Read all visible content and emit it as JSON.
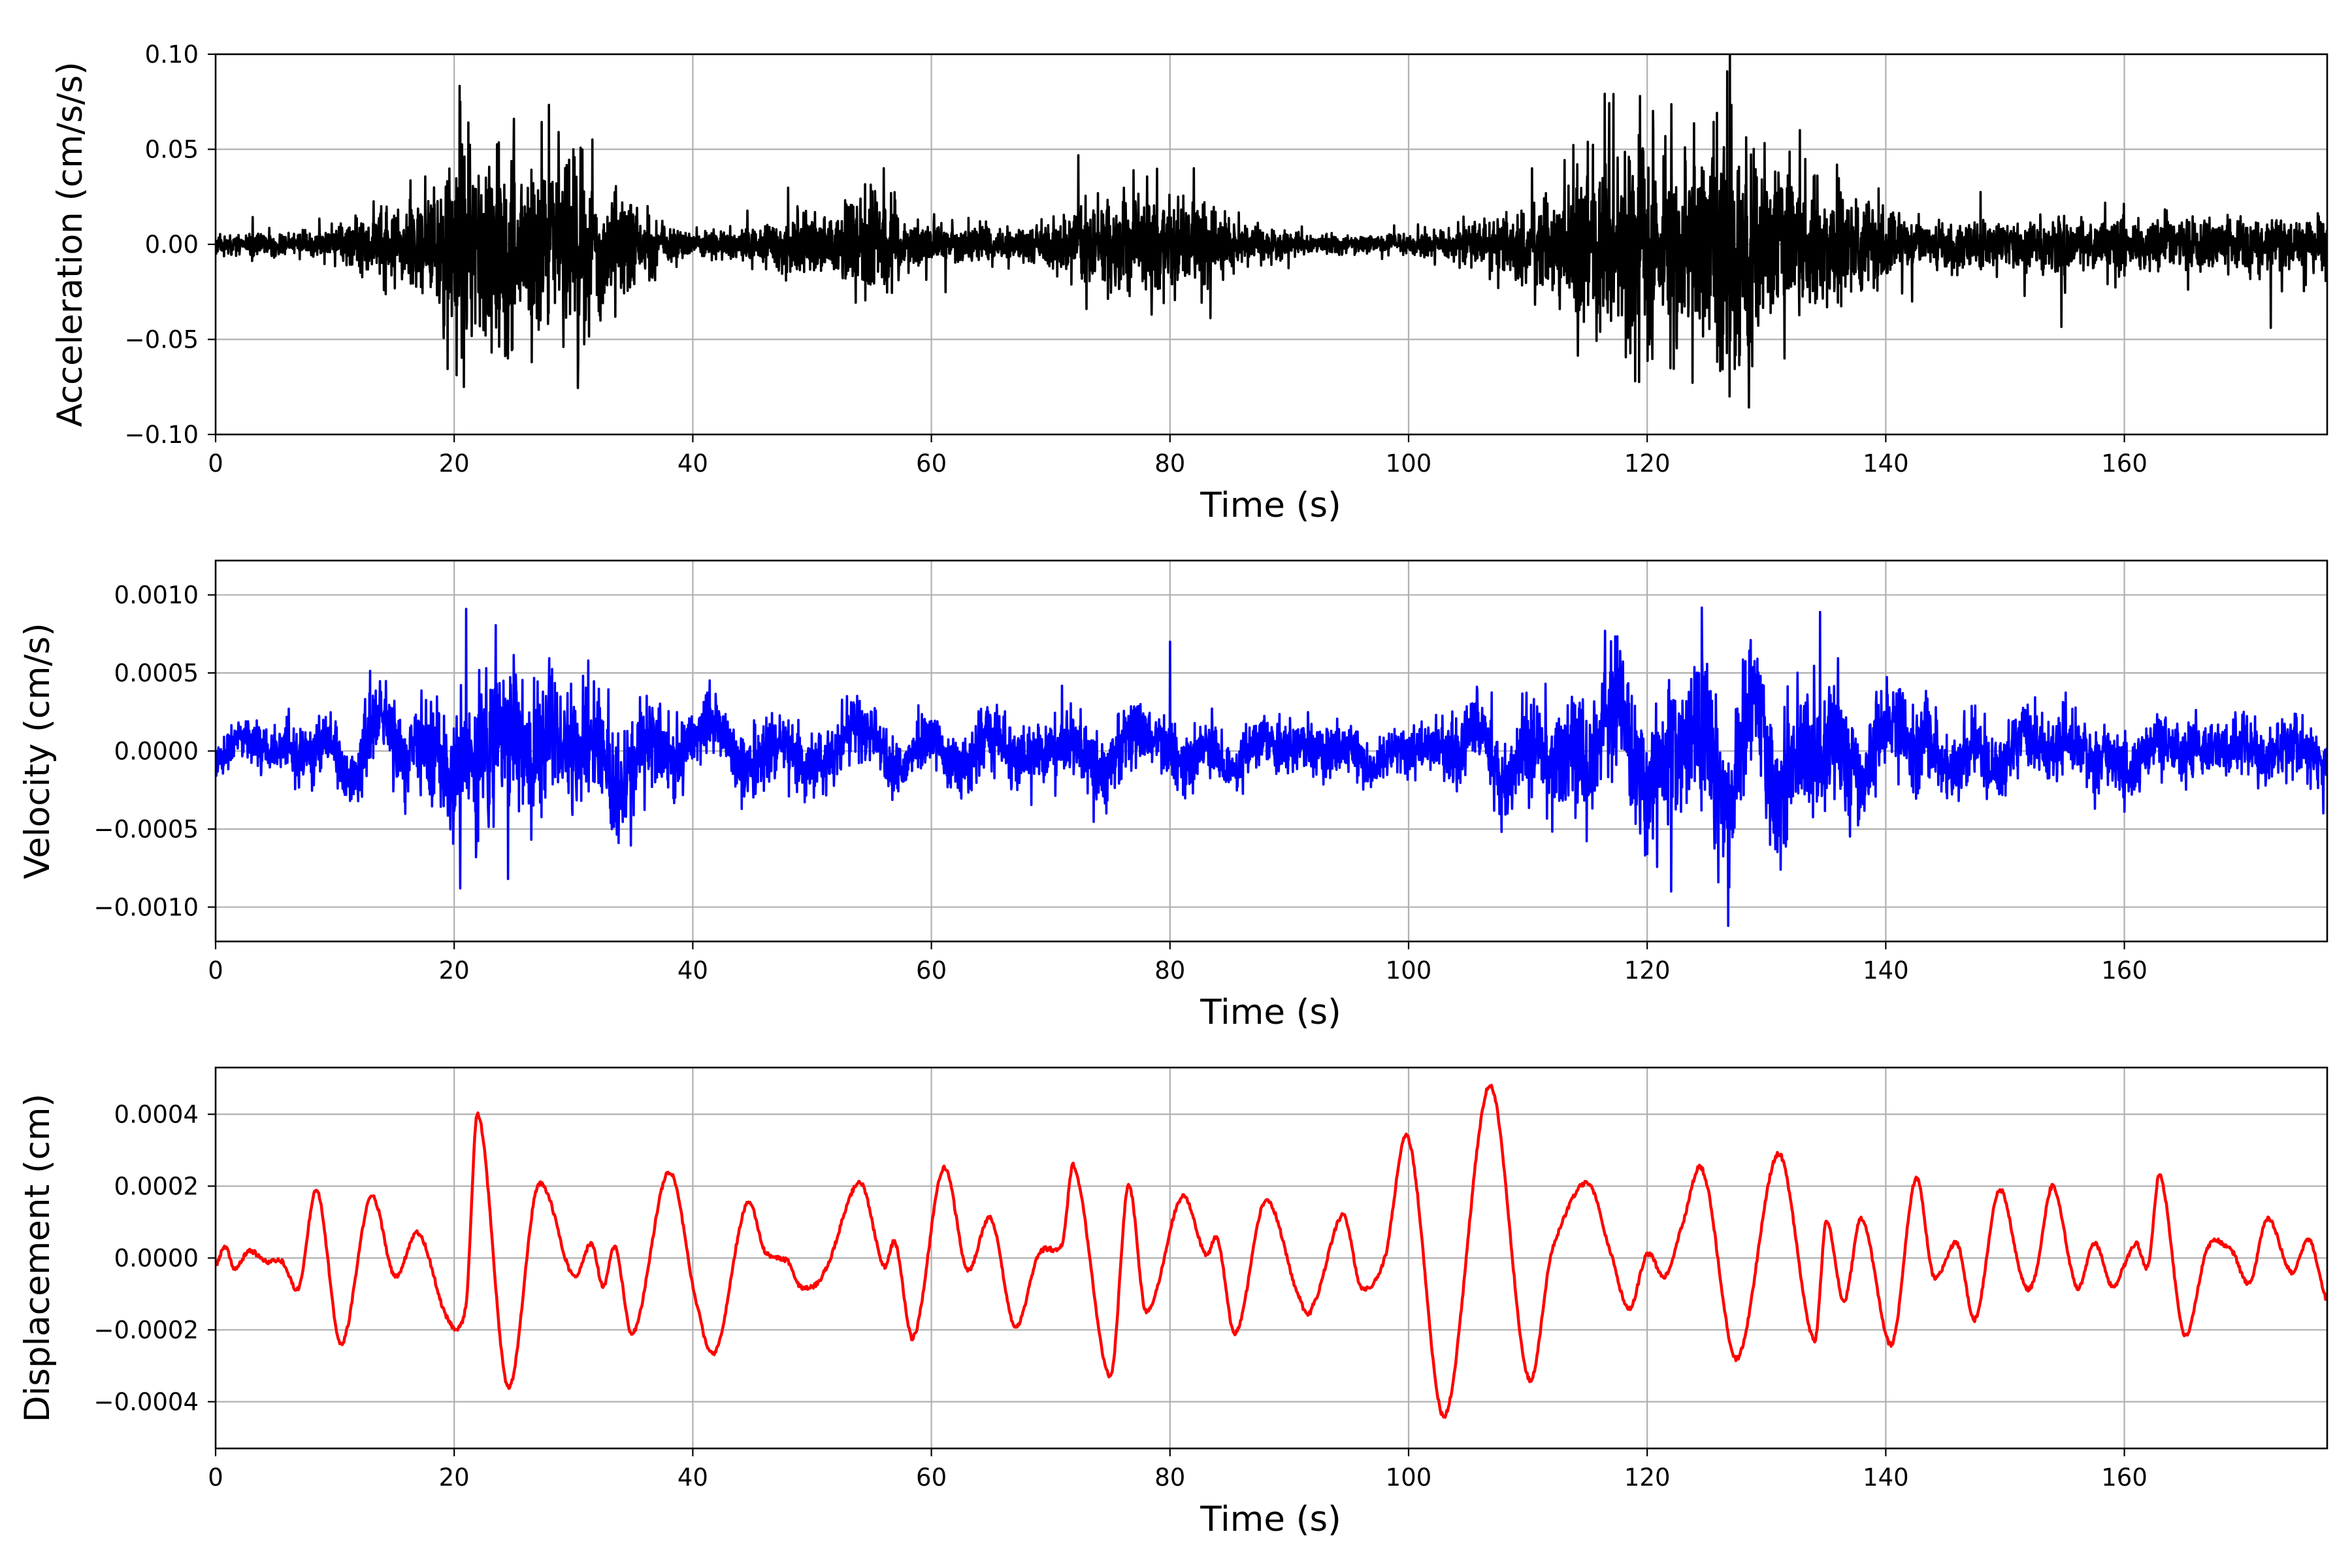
{
  "chart_data": [
    {
      "type": "line",
      "xlabel": "Time (s)",
      "ylabel": "Acceleration (cm/s/s)",
      "xlim": [
        0,
        177
      ],
      "ylim": [
        -0.1,
        0.1
      ],
      "xticks": [
        0,
        20,
        40,
        60,
        80,
        100,
        120,
        140,
        160
      ],
      "xtick_labels": [
        "0",
        "20",
        "40",
        "60",
        "80",
        "100",
        "120",
        "140",
        "160"
      ],
      "yticks": [
        -0.1,
        -0.05,
        0.0,
        0.05,
        0.1
      ],
      "ytick_labels": [
        "−0.10",
        "−0.05",
        "0.00",
        "0.05",
        "0.10"
      ],
      "grid": true,
      "color": "#000000",
      "signal": "noisy",
      "seed": 11,
      "envelope": [
        [
          0,
          0.004
        ],
        [
          10,
          0.006
        ],
        [
          13,
          0.016
        ],
        [
          16,
          0.018
        ],
        [
          19,
          0.03
        ],
        [
          20.5,
          0.06
        ],
        [
          22,
          0.034
        ],
        [
          24,
          0.046
        ],
        [
          26,
          0.036
        ],
        [
          29,
          0.042
        ],
        [
          33,
          0.032
        ],
        [
          36,
          0.012
        ],
        [
          40,
          0.006
        ],
        [
          44,
          0.006
        ],
        [
          48,
          0.014
        ],
        [
          52,
          0.016
        ],
        [
          55,
          0.024
        ],
        [
          58,
          0.012
        ],
        [
          62,
          0.008
        ],
        [
          68,
          0.008
        ],
        [
          73,
          0.018
        ],
        [
          76,
          0.02
        ],
        [
          80,
          0.022
        ],
        [
          83,
          0.018
        ],
        [
          86,
          0.009
        ],
        [
          92,
          0.004
        ],
        [
          100,
          0.004
        ],
        [
          105,
          0.008
        ],
        [
          110,
          0.018
        ],
        [
          115,
          0.034
        ],
        [
          119,
          0.05
        ],
        [
          123,
          0.04
        ],
        [
          126.7,
          0.065
        ],
        [
          130,
          0.036
        ],
        [
          135,
          0.03
        ],
        [
          139,
          0.02
        ],
        [
          142,
          0.011
        ],
        [
          150,
          0.011
        ],
        [
          160,
          0.012
        ],
        [
          170,
          0.012
        ],
        [
          177,
          0.013
        ]
      ],
      "spikes": [
        [
          20.5,
          0.075
        ],
        [
          20.8,
          -0.075
        ],
        [
          25.0,
          0.066
        ],
        [
          24.5,
          -0.06
        ],
        [
          26.5,
          -0.062
        ],
        [
          30.0,
          0.05
        ],
        [
          30.4,
          -0.06
        ],
        [
          56.0,
          0.04
        ],
        [
          73.0,
          -0.034
        ],
        [
          82.0,
          0.04
        ],
        [
          119.0,
          -0.072
        ],
        [
          120.5,
          0.06
        ],
        [
          126.7,
          0.091
        ],
        [
          126.9,
          -0.08
        ],
        [
          131.5,
          -0.06
        ]
      ]
    },
    {
      "type": "line",
      "xlabel": "Time (s)",
      "ylabel": "Velocity (cm/s)",
      "xlim": [
        0,
        177
      ],
      "ylim": [
        -0.00122,
        0.00122
      ],
      "xticks": [
        0,
        20,
        40,
        60,
        80,
        100,
        120,
        140,
        160
      ],
      "xtick_labels": [
        "0",
        "20",
        "40",
        "60",
        "80",
        "100",
        "120",
        "140",
        "160"
      ],
      "yticks": [
        -0.001,
        -0.0005,
        0.0,
        0.0005,
        0.001
      ],
      "ytick_labels": [
        "−0.0010",
        "−0.0005",
        "0.0000",
        "0.0005",
        "0.0010"
      ],
      "grid": true,
      "color": "#0000ff",
      "signal": "velocity",
      "seed": 23,
      "envelope": [
        [
          0,
          8e-05
        ],
        [
          8,
          0.00012
        ],
        [
          15,
          0.00016
        ],
        [
          20,
          0.00024
        ],
        [
          22,
          0.0003
        ],
        [
          26,
          0.00026
        ],
        [
          34,
          0.00022
        ],
        [
          40,
          0.00014
        ],
        [
          50,
          0.00014
        ],
        [
          60,
          0.00013
        ],
        [
          75,
          0.00014
        ],
        [
          85,
          0.00012
        ],
        [
          100,
          0.0001
        ],
        [
          108,
          0.00016
        ],
        [
          115,
          0.00026
        ],
        [
          122,
          0.0003
        ],
        [
          127,
          0.00032
        ],
        [
          135,
          0.00026
        ],
        [
          140,
          0.00018
        ],
        [
          150,
          0.00013
        ],
        [
          177,
          0.00012
        ]
      ],
      "spikes": [
        [
          21.0,
          0.00091
        ],
        [
          20.5,
          -0.00088
        ],
        [
          24.5,
          -0.00082
        ],
        [
          126.8,
          -0.00112
        ],
        [
          134.5,
          0.00089
        ],
        [
          122.0,
          -0.0009
        ],
        [
          80.0,
          0.0007
        ]
      ]
    },
    {
      "type": "line",
      "xlabel": "Time (s)",
      "ylabel": "Displacement (cm)",
      "xlim": [
        0,
        177
      ],
      "ylim": [
        -0.00053,
        0.00053
      ],
      "xticks": [
        0,
        20,
        40,
        60,
        80,
        100,
        120,
        140,
        160
      ],
      "xtick_labels": [
        "0",
        "20",
        "40",
        "60",
        "80",
        "100",
        "120",
        "140",
        "160"
      ],
      "yticks": [
        -0.0004,
        -0.0002,
        0.0,
        0.0002,
        0.0004
      ],
      "ytick_labels": [
        "−0.0004",
        "−0.0002",
        "0.0000",
        "0.0002",
        "0.0004"
      ],
      "grid": true,
      "color": "#ff0000",
      "signal": "smooth",
      "seed": 37,
      "points": [
        [
          0,
          -2e-05
        ],
        [
          0.8,
          3e-05
        ],
        [
          1.6,
          -3e-05
        ],
        [
          2.8,
          2e-05
        ],
        [
          4.2,
          -1e-05
        ],
        [
          5.6,
          -1e-05
        ],
        [
          7.0,
          -8e-05
        ],
        [
          8.5,
          0.00019
        ],
        [
          10.5,
          -0.00024
        ],
        [
          13.0,
          0.00017
        ],
        [
          15.0,
          -5e-05
        ],
        [
          17.0,
          7e-05
        ],
        [
          19.5,
          -0.00017
        ],
        [
          21.0,
          -0.00013
        ],
        [
          22.0,
          0.0004
        ],
        [
          24.5,
          -0.00036
        ],
        [
          27.0,
          0.0002
        ],
        [
          30.0,
          -5e-05
        ],
        [
          31.5,
          4e-05
        ],
        [
          32.5,
          -8e-05
        ],
        [
          33.5,
          3e-05
        ],
        [
          35.0,
          -0.00021
        ],
        [
          38.0,
          0.00024
        ],
        [
          40.5,
          -0.00015
        ],
        [
          42.0,
          -0.00025
        ],
        [
          44.5,
          0.00015
        ],
        [
          46.0,
          2e-05
        ],
        [
          48.0,
          -1e-05
        ],
        [
          49.0,
          -8e-05
        ],
        [
          51.0,
          -4e-05
        ],
        [
          54.0,
          0.00021
        ],
        [
          56.0,
          -2e-05
        ],
        [
          57.0,
          4e-05
        ],
        [
          58.5,
          -0.00022
        ],
        [
          61.0,
          0.00025
        ],
        [
          63.0,
          -3e-05
        ],
        [
          65.0,
          0.00011
        ],
        [
          67.0,
          -0.00019
        ],
        [
          69.0,
          1e-05
        ],
        [
          71.0,
          4e-05
        ],
        [
          72.0,
          0.00025
        ],
        [
          75.0,
          -0.00033
        ],
        [
          76.5,
          0.0002
        ],
        [
          78.0,
          -0.00015
        ],
        [
          81.0,
          0.00017
        ],
        [
          83.0,
          1e-05
        ],
        [
          84.0,
          5e-05
        ],
        [
          85.5,
          -0.00021
        ],
        [
          88.0,
          0.00016
        ],
        [
          91.0,
          -0.00012
        ],
        [
          92.0,
          -0.00013
        ],
        [
          94.5,
          0.00012
        ],
        [
          96.0,
          -8e-05
        ],
        [
          98.0,
          0.0
        ],
        [
          100.0,
          0.00033
        ],
        [
          103.0,
          -0.00044
        ],
        [
          106.8,
          0.00048
        ],
        [
          110.0,
          -0.00033
        ],
        [
          112.0,
          2e-05
        ],
        [
          115.0,
          0.00021
        ],
        [
          117.0,
          1e-05
        ],
        [
          118.5,
          -0.00014
        ],
        [
          120.0,
          1e-05
        ],
        [
          121.5,
          -5e-05
        ],
        [
          123.0,
          0.0001
        ],
        [
          124.7,
          0.00024
        ],
        [
          127.5,
          -0.00028
        ],
        [
          131.0,
          0.00029
        ],
        [
          134.0,
          -0.00023
        ],
        [
          135.0,
          0.0001
        ],
        [
          136.5,
          -0.00012
        ],
        [
          138.0,
          0.00011
        ],
        [
          140.5,
          -0.00024
        ],
        [
          142.5,
          0.00022
        ],
        [
          144.0,
          -5e-05
        ],
        [
          146.0,
          4e-05
        ],
        [
          147.5,
          -0.00017
        ],
        [
          149.5,
          0.00019
        ],
        [
          151.5,
          -6e-05
        ],
        [
          152.5,
          -5e-05
        ],
        [
          154.0,
          0.0002
        ],
        [
          156.0,
          -8e-05
        ],
        [
          157.5,
          4e-05
        ],
        [
          159.0,
          -8e-05
        ],
        [
          160.0,
          -2e-05
        ],
        [
          161.0,
          4e-05
        ],
        [
          162.0,
          -2e-05
        ],
        [
          163.0,
          0.00023
        ],
        [
          165.0,
          -0.00021
        ],
        [
          167.0,
          3e-05
        ],
        [
          169.0,
          2e-05
        ],
        [
          170.5,
          -7e-05
        ],
        [
          172.0,
          0.00011
        ],
        [
          174.0,
          -4e-05
        ],
        [
          175.5,
          5e-05
        ],
        [
          177.0,
          -0.00012
        ]
      ]
    }
  ]
}
